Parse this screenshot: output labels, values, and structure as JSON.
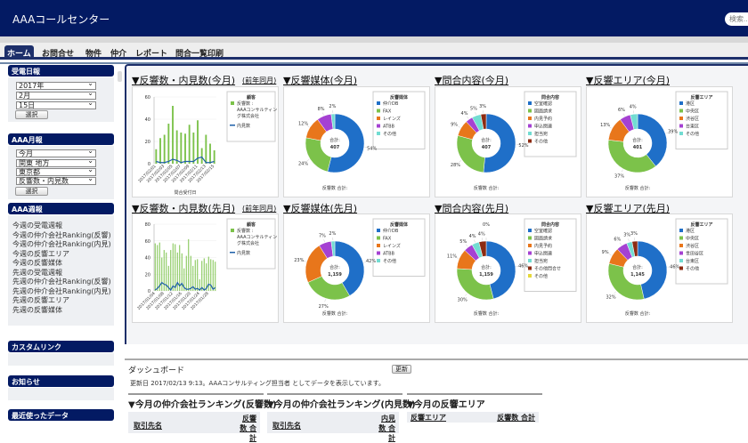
{
  "header": {
    "title": "AAAコールセンター",
    "search_placeholder": "検索..."
  },
  "tabs": [
    {
      "label": "ホーム",
      "active": true
    },
    {
      "label": "お問合せ"
    },
    {
      "label": "物件"
    },
    {
      "label": "仲介"
    },
    {
      "label": "レポート"
    },
    {
      "label": "問合一覧印刷"
    }
  ],
  "sidebar": {
    "daily": {
      "title": "受電日報",
      "year": "2017年",
      "month": "2月",
      "day": "15日",
      "button": "選択"
    },
    "monthly": {
      "title": "AAA月報",
      "period": "今月",
      "region": "関東 地方",
      "pref": "東京都",
      "metric": "反響数・内見数",
      "button": "選択"
    },
    "weekly": {
      "title": "AAA週報",
      "links": [
        "今週の受電週報",
        "今週の仲介会社Ranking(反響)",
        "今週の仲介会社Ranking(内見)",
        "今週の反響エリア",
        "今週の反響媒体",
        "先週の受電週報",
        "先週の仲介会社Ranking(反響)",
        "先週の仲介会社Ranking(内見)",
        "先週の反響エリア",
        "先週の反響媒体"
      ]
    },
    "custom_links": {
      "title": "カスタムリンク"
    },
    "news": {
      "title": "お知らせ"
    },
    "recent": {
      "title": "最近使ったデータ"
    }
  },
  "colors": {
    "blue": "#1f6fc8",
    "green": "#7cc24a",
    "orange": "#e8761b",
    "purple": "#a541d2",
    "teal": "#72dcd2",
    "brown": "#8c2b12",
    "yellow": "#e6d83a",
    "line": "#1d5fa8"
  },
  "chart_data": [
    {
      "type": "bar",
      "title": "▼反響数・内見数(今月)",
      "link": "(前年同月)",
      "xlabel": "問合受付日",
      "ylim": [
        0,
        60
      ],
      "yticks": [
        0,
        20,
        40,
        60
      ],
      "legend_title": "顧客",
      "categories": [
        "2017/02/01",
        "2017/02/02",
        "2017/02/03",
        "2017/02/04",
        "2017/02/05",
        "2017/02/06",
        "2017/02/07",
        "2017/02/08",
        "2017/02/09",
        "2017/02/10",
        "2017/02/11",
        "2017/02/12",
        "2017/02/13",
        "2017/02/14",
        "2017/02/15"
      ],
      "label_every": 2,
      "series": [
        {
          "name": "反響数 : AAAコンサルティング株式会社",
          "type": "bar",
          "values": [
            13,
            23,
            26,
            36,
            52,
            30,
            28,
            27,
            35,
            28,
            39,
            14,
            26,
            18,
            12
          ]
        },
        {
          "name": "内見数",
          "type": "line",
          "values": [
            2,
            1,
            1,
            2,
            4,
            3,
            1,
            2,
            2,
            2,
            5,
            6,
            1,
            1,
            2
          ]
        }
      ]
    },
    {
      "type": "pie",
      "title": "▼反響媒体(今月)",
      "legend_title": "反響媒体",
      "total_label": "合計:",
      "total": "407",
      "footer": "反響数 合計:",
      "labels": [
        "仲介DB",
        "FAX",
        "レインズ",
        "ATBB",
        "その他"
      ],
      "values": [
        54,
        24,
        12,
        8,
        2
      ]
    },
    {
      "type": "pie",
      "title": "▼問合内容(今月)",
      "legend_title": "問合内容",
      "total_label": "合計:",
      "total": "407",
      "footer": "反響数 合計:",
      "labels": [
        "空室確認",
        "図面請求",
        "内見予約",
        "申込関連",
        "担当宛",
        "その他"
      ],
      "values": [
        52,
        28,
        9,
        4,
        5,
        3
      ]
    },
    {
      "type": "pie",
      "title": "▼反響エリア(今月)",
      "legend_title": "反響エリア",
      "total_label": "合計:",
      "total": "401",
      "footer": "反響数 合計:",
      "labels": [
        "港区",
        "中央区",
        "渋谷区",
        "台東区",
        "その他"
      ],
      "values": [
        39,
        37,
        13,
        6,
        4
      ]
    },
    {
      "type": "bar",
      "title": "▼反響数・内見数(先月)",
      "link": "(前年同月)",
      "xlabel": "",
      "ylim": [
        0,
        80
      ],
      "yticks": [
        0,
        20,
        40,
        60,
        80
      ],
      "legend_title": "顧客",
      "categories": [
        "2017/01/04",
        "2017/01/05",
        "2017/01/06",
        "2017/01/07",
        "2017/01/08",
        "2017/01/09",
        "2017/01/10",
        "2017/01/11",
        "2017/01/12",
        "2017/01/13",
        "2017/01/14",
        "2017/01/15",
        "2017/01/16",
        "2017/01/17",
        "2017/01/18",
        "2017/01/19",
        "2017/01/20",
        "2017/01/21",
        "2017/01/22",
        "2017/01/23",
        "2017/01/24",
        "2017/01/25",
        "2017/01/26",
        "2017/01/27",
        "2017/01/28",
        "2017/01/29",
        "2017/01/30",
        "2017/01/31"
      ],
      "label_every": 4,
      "series": [
        {
          "name": "反響数 : AAAコンサルティング株式会社",
          "type": "bar",
          "values": [
            57,
            55,
            58,
            40,
            49,
            46,
            30,
            49,
            57,
            56,
            46,
            55,
            45,
            27,
            42,
            62,
            42,
            30,
            37,
            38,
            14,
            36,
            39,
            33,
            41,
            38,
            37,
            35
          ]
        },
        {
          "name": "内見数",
          "type": "line",
          "values": [
            1,
            3,
            6,
            10,
            8,
            7,
            4,
            1,
            6,
            4,
            10,
            6,
            9,
            4,
            2,
            2,
            3,
            5,
            2,
            3,
            1,
            4,
            1,
            3,
            8,
            7,
            2,
            4
          ]
        }
      ]
    },
    {
      "type": "pie",
      "title": "▼反響媒体(先月)",
      "legend_title": "反響媒体",
      "total_label": "合計:",
      "total": "1,159",
      "footer": "反響数 合計:",
      "labels": [
        "仲介DB",
        "FAX",
        "レインズ",
        "ATBB",
        "その他"
      ],
      "values": [
        42,
        27,
        23,
        7,
        2
      ]
    },
    {
      "type": "pie",
      "title": "▼問合内容(先月)",
      "legend_title": "問合内容",
      "total_label": "合計:",
      "total": "1,159",
      "footer": "反響数 合計:",
      "labels": [
        "空室確認",
        "図面請求",
        "内見予約",
        "申込関連",
        "担当宛",
        "その他問合せ",
        "その他"
      ],
      "values": [
        46,
        30,
        11,
        5,
        4,
        4,
        0
      ]
    },
    {
      "type": "pie",
      "title": "▼反響エリア(先月)",
      "legend_title": "反響エリア",
      "total_label": "合計:",
      "total": "1,145",
      "footer": "反響数 合計:",
      "labels": [
        "港区",
        "中央区",
        "渋谷区",
        "世田谷区",
        "台東区",
        "その他"
      ],
      "values": [
        46,
        32,
        9,
        6,
        3,
        3
      ]
    }
  ],
  "dashboard": {
    "title": "ダッシュボード",
    "refresh": "更新",
    "updated": "更新日 2017/02/13 9:13。AAAコンサルティング担当者 としてデータを表示しています。",
    "tables": [
      {
        "title": "▼今月の仲介会社ランキング(反響数)",
        "col1": "取引先名",
        "col2": "反響数 合計"
      },
      {
        "title": "▼今月の仲介会社ランキング(内見数)",
        "col1": "取引先名",
        "col2": "内見数 合計"
      },
      {
        "title": "▼今月の反響エリア",
        "col1": "反響エリア",
        "col2": "反響数 合計"
      }
    ]
  }
}
